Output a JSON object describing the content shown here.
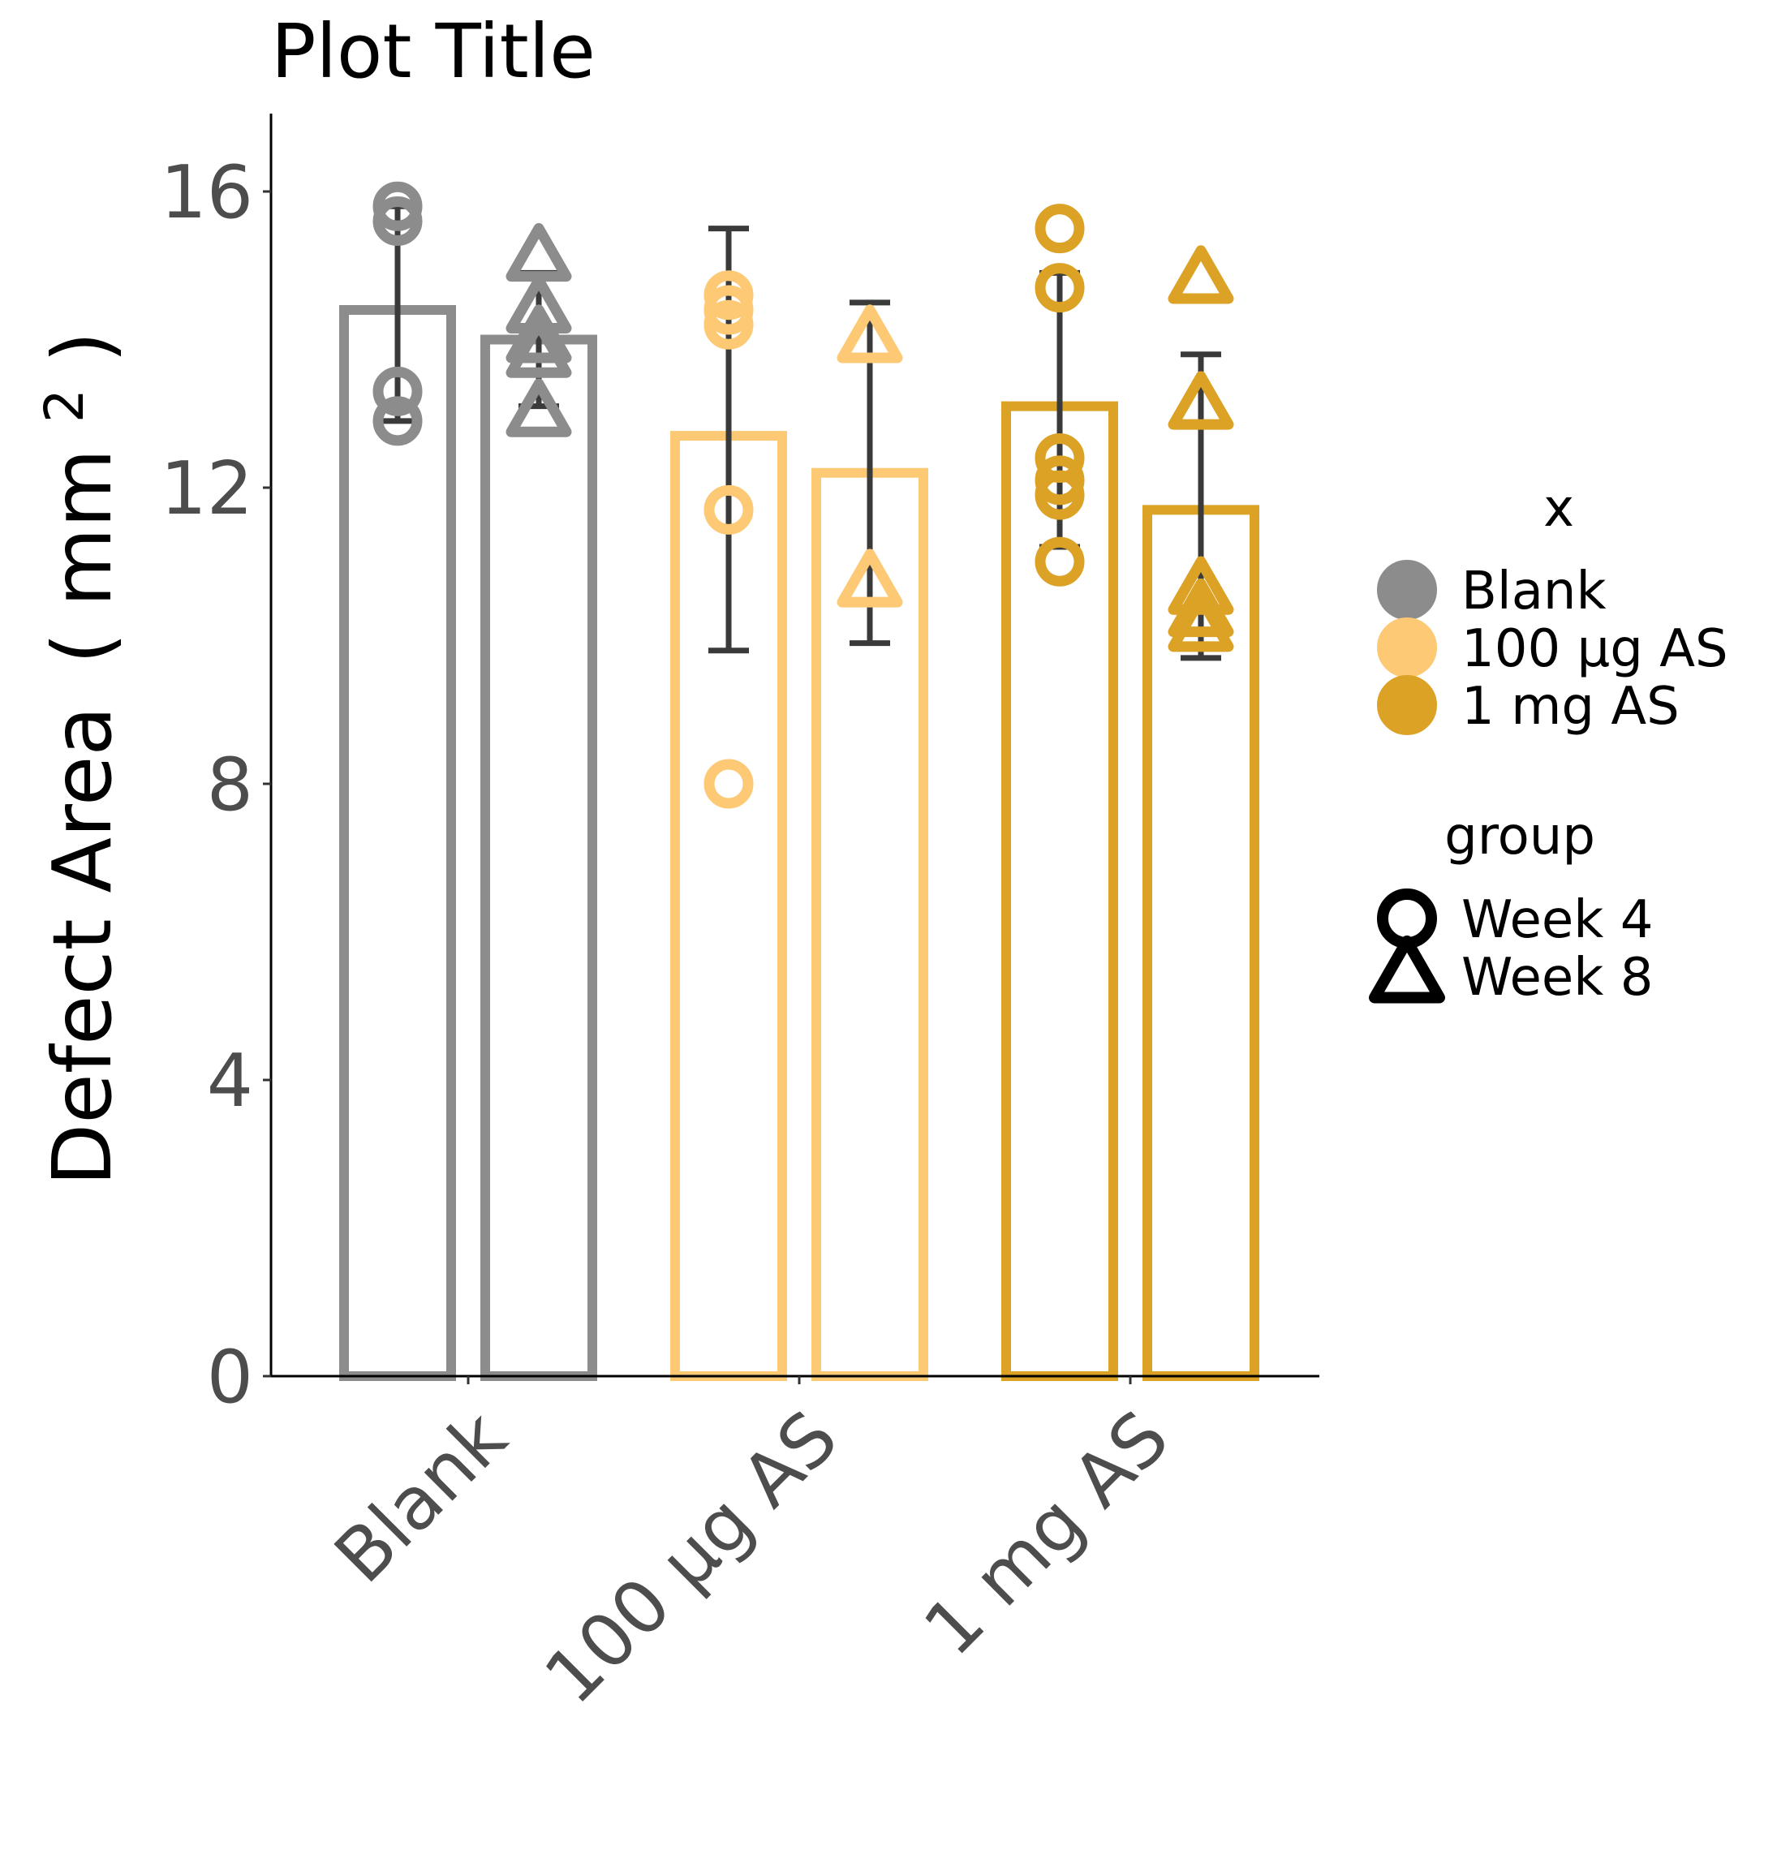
{
  "chart_data": {
    "type": "bar",
    "title": "Plot Title",
    "xlabel": "",
    "ylabel": "Defect Area (mm²)",
    "ylabel_main": "Defect Area",
    "ylabel_unit": "mm",
    "ylabel_sup": "2",
    "ylabel_paren_open": "(",
    "ylabel_paren_close": ")",
    "ylim": [
      0,
      17
    ],
    "y_ticks": [
      0,
      4,
      8,
      12,
      16
    ],
    "y_tick_labels": [
      "0",
      "4",
      "8",
      "12",
      "16"
    ],
    "grid": false,
    "categories": [
      "Blank",
      "100 µg AS",
      "1 mg AS"
    ],
    "bar_style": "outline",
    "series": [
      {
        "name": "Week 4",
        "shape": "circle",
        "values": [
          14.4,
          12.7,
          13.1
        ],
        "error_low": [
          12.9,
          9.8,
          11.2
        ],
        "error_high": [
          15.8,
          15.5,
          14.9
        ],
        "points": [
          [
            15.8,
            15.6,
            13.3,
            12.9
          ],
          [
            14.6,
            14.4,
            14.2,
            11.7,
            8.0
          ],
          [
            15.5,
            14.7,
            12.4,
            12.1,
            11.9,
            11.0
          ]
        ]
      },
      {
        "name": "Week 8",
        "shape": "triangle",
        "values": [
          14.0,
          12.2,
          11.7
        ],
        "error_low": [
          13.1,
          9.9,
          9.7
        ],
        "error_high": [
          14.9,
          14.5,
          13.8
        ],
        "points": [
          [
            15.1,
            14.4,
            14.0,
            13.8,
            13.0
          ],
          [
            14.0,
            10.7
          ],
          [
            14.8,
            13.1,
            10.6,
            10.3,
            10.1
          ]
        ]
      }
    ],
    "legend": {
      "placement": "right",
      "x_title": "x",
      "x_entries": [
        "Blank",
        "100 µg AS",
        "1 mg AS"
      ],
      "group_title": "group",
      "group_entries": [
        "Week 4",
        "Week 8"
      ]
    },
    "colors": {
      "Blank": "#8c8c8c",
      "100 µg AS": "#fdc974",
      "1 mg AS": "#dba226",
      "error_bar": "#3a3a3a",
      "axis": "#000000",
      "legend_shape": "#000000"
    }
  }
}
